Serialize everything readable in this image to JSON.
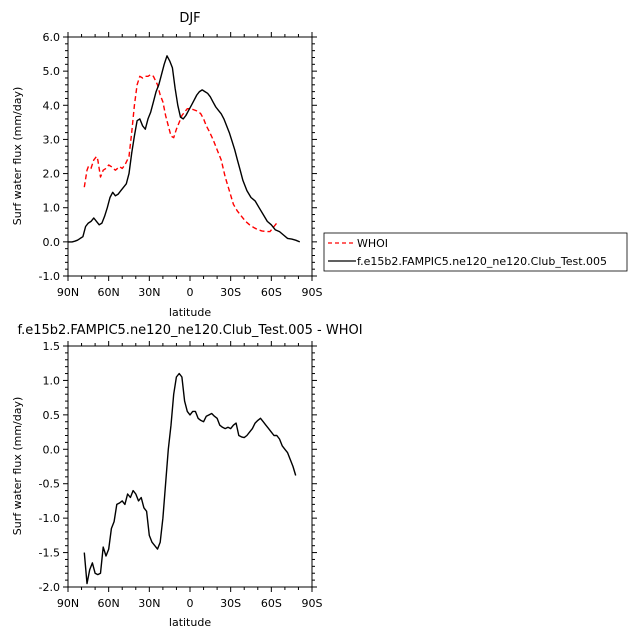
{
  "chart_data": [
    {
      "type": "line",
      "title": "DJF",
      "xlabel": "latitude",
      "ylabel": "Surf water flux (mm/day)",
      "xlim": [
        90,
        -90
      ],
      "ylim": [
        -1.0,
        6.0
      ],
      "x_ticks": [
        "90N",
        "60N",
        "30N",
        "0",
        "30S",
        "60S",
        "90S"
      ],
      "y_ticks": [
        "-1.0",
        "0.0",
        "1.0",
        "2.0",
        "3.0",
        "4.0",
        "5.0",
        "6.0"
      ],
      "legend_position": "right",
      "series": [
        {
          "name": "WHOI",
          "color": "#ff0000",
          "dash": "dashed",
          "x": [
            78,
            76,
            75,
            73,
            71,
            69,
            68,
            66,
            64,
            62,
            60,
            58,
            55,
            52,
            50,
            48,
            45,
            43,
            41,
            39,
            37,
            35,
            33,
            31,
            29,
            27,
            24,
            22,
            20,
            18,
            16,
            14,
            12,
            10,
            8,
            6,
            4,
            2,
            0,
            -2,
            -4,
            -6,
            -8,
            -10,
            -12,
            -14,
            -17,
            -20,
            -23,
            -26,
            -29,
            -32,
            -35,
            -38,
            -41,
            -44,
            -47,
            -50,
            -53,
            -56,
            -59,
            -62,
            -65,
            -68,
            -71,
            -74,
            -77
          ],
          "y": [
            1.6,
            2.1,
            2.2,
            2.15,
            2.4,
            2.5,
            2.4,
            1.9,
            2.1,
            2.15,
            2.25,
            2.2,
            2.1,
            2.2,
            2.15,
            2.25,
            2.5,
            3.2,
            4.0,
            4.6,
            4.85,
            4.8,
            4.85,
            4.85,
            4.9,
            4.85,
            4.6,
            4.3,
            4.1,
            3.7,
            3.4,
            3.1,
            3.05,
            3.3,
            3.5,
            3.7,
            3.8,
            3.9,
            3.9,
            3.88,
            3.85,
            3.82,
            3.75,
            3.6,
            3.4,
            3.25,
            3.0,
            2.7,
            2.4,
            1.9,
            1.5,
            1.1,
            0.9,
            0.75,
            0.6,
            0.5,
            0.42,
            0.36,
            0.32,
            0.3,
            0.3,
            0.45,
            0.6,
            null,
            null,
            null,
            null
          ]
        },
        {
          "name": "f.e15b2.FAMPIC5.ne120_ne120.Club_Test.005",
          "color": "#000000",
          "dash": "solid",
          "x": [
            90,
            87,
            85,
            83,
            81,
            79,
            77,
            75,
            73,
            71,
            69,
            67,
            65,
            63,
            61,
            59,
            57,
            55,
            53,
            51,
            49,
            47,
            45,
            43,
            41,
            39,
            37,
            35,
            33,
            31,
            29,
            27,
            25,
            23,
            21,
            19,
            17,
            15,
            13,
            11,
            9,
            7,
            5,
            3,
            1,
            -1,
            -3,
            -5,
            -7,
            -9,
            -11,
            -13,
            -15,
            -17,
            -19,
            -21,
            -23,
            -25,
            -27,
            -29,
            -31,
            -33,
            -35,
            -37,
            -39,
            -42,
            -45,
            -48,
            -51,
            -54,
            -57,
            -60,
            -63,
            -66,
            -69,
            -72,
            -75,
            -78,
            -81,
            -84,
            -87
          ],
          "y": [
            0.0,
            0.0,
            0.02,
            0.05,
            0.1,
            0.15,
            0.45,
            0.55,
            0.6,
            0.7,
            0.6,
            0.5,
            0.55,
            0.75,
            1.0,
            1.3,
            1.45,
            1.35,
            1.4,
            1.5,
            1.6,
            1.7,
            2.0,
            2.6,
            3.1,
            3.55,
            3.6,
            3.4,
            3.3,
            3.6,
            3.8,
            4.1,
            4.4,
            4.6,
            4.9,
            5.2,
            5.45,
            5.3,
            5.1,
            4.5,
            4.0,
            3.65,
            3.6,
            3.7,
            3.85,
            4.0,
            4.15,
            4.3,
            4.4,
            4.45,
            4.4,
            4.35,
            4.25,
            4.1,
            3.95,
            3.85,
            3.75,
            3.6,
            3.4,
            3.2,
            2.95,
            2.7,
            2.4,
            2.1,
            1.8,
            1.5,
            1.3,
            1.2,
            1.0,
            0.8,
            0.6,
            0.5,
            0.35,
            0.3,
            0.2,
            0.1,
            0.08,
            0.05,
            0.0,
            null,
            null
          ]
        }
      ]
    },
    {
      "type": "line",
      "title": "f.e15b2.FAMPIC5.ne120_ne120.Club_Test.005 - WHOI",
      "xlabel": "latitude",
      "ylabel": "Surf water flux (mm/day)",
      "xlim": [
        90,
        -90
      ],
      "ylim": [
        -2.0,
        1.5
      ],
      "x_ticks": [
        "90N",
        "60N",
        "30N",
        "0",
        "30S",
        "60S",
        "90S"
      ],
      "y_ticks": [
        "-2.0",
        "-1.5",
        "-1.0",
        "-0.5",
        "0.0",
        "0.5",
        "1.0",
        "1.5"
      ],
      "series": [
        {
          "name": "",
          "color": "#000000",
          "dash": "solid",
          "x": [
            78,
            76,
            74,
            72,
            70,
            68,
            66,
            64,
            62,
            60,
            58,
            56,
            54,
            52,
            50,
            48,
            46,
            44,
            42,
            40,
            38,
            36,
            34,
            32,
            30,
            28,
            26,
            24,
            22,
            20,
            18,
            16,
            14,
            12,
            10,
            8,
            6,
            4,
            2,
            0,
            -2,
            -4,
            -6,
            -8,
            -10,
            -12,
            -14,
            -16,
            -18,
            -20,
            -22,
            -24,
            -26,
            -28,
            -30,
            -32,
            -34,
            -36,
            -38,
            -40,
            -42,
            -44,
            -46,
            -48,
            -50,
            -52,
            -54,
            -56,
            -58,
            -60,
            -62,
            -64,
            -66,
            -68,
            -70,
            -72,
            -74,
            -76,
            -78
          ],
          "y": [
            -1.5,
            -1.95,
            -1.75,
            -1.65,
            -1.8,
            -1.82,
            -1.8,
            -1.42,
            -1.55,
            -1.45,
            -1.15,
            -1.05,
            -0.8,
            -0.78,
            -0.75,
            -0.8,
            -0.65,
            -0.7,
            -0.6,
            -0.65,
            -0.75,
            -0.7,
            -0.85,
            -0.9,
            -1.25,
            -1.35,
            -1.4,
            -1.45,
            -1.35,
            -1.0,
            -0.5,
            0.0,
            0.35,
            0.8,
            1.05,
            1.1,
            1.05,
            0.7,
            0.55,
            0.5,
            0.55,
            0.55,
            0.45,
            0.42,
            0.4,
            0.48,
            0.5,
            0.52,
            0.48,
            0.45,
            0.35,
            0.32,
            0.3,
            0.32,
            0.3,
            0.35,
            0.38,
            0.2,
            0.18,
            0.17,
            0.2,
            0.25,
            0.3,
            0.38,
            0.42,
            0.45,
            0.4,
            0.35,
            0.3,
            0.25,
            0.2,
            0.2,
            0.15,
            0.05,
            0.0,
            -0.05,
            -0.15,
            -0.25,
            -0.38
          ]
        }
      ]
    }
  ]
}
